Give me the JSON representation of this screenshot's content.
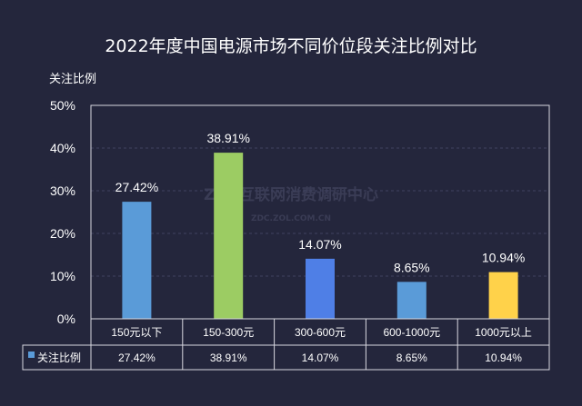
{
  "chart_data": {
    "type": "bar",
    "title": "2022年度中国电源市场不同价位段关注比例对比",
    "ylabel": "关注比例",
    "xlabel": "",
    "categories": [
      "150元以下",
      "150-300元",
      "300-600元",
      "600-1000元",
      "1000元以上"
    ],
    "series": [
      {
        "name": "关注比例",
        "values": [
          27.42,
          38.91,
          14.07,
          8.65,
          10.94
        ]
      }
    ],
    "data_labels": [
      "27.42%",
      "38.91%",
      "14.07%",
      "8.65%",
      "10.94%"
    ],
    "ylim": [
      0,
      50
    ],
    "yticks": [
      "0%",
      "10%",
      "20%",
      "30%",
      "40%",
      "50%"
    ],
    "grid": true,
    "data_table": true,
    "legend": "data-table-left",
    "bar_colors": [
      "#5a9bd8",
      "#9ccc63",
      "#4f7fe6",
      "#5a9bd8",
      "#ffd24a"
    ],
    "legend_color": "#5a9bd8",
    "watermark": [
      "ZDC互联网消费调研中心",
      "ZDC.ZOL.COM.CN"
    ]
  }
}
